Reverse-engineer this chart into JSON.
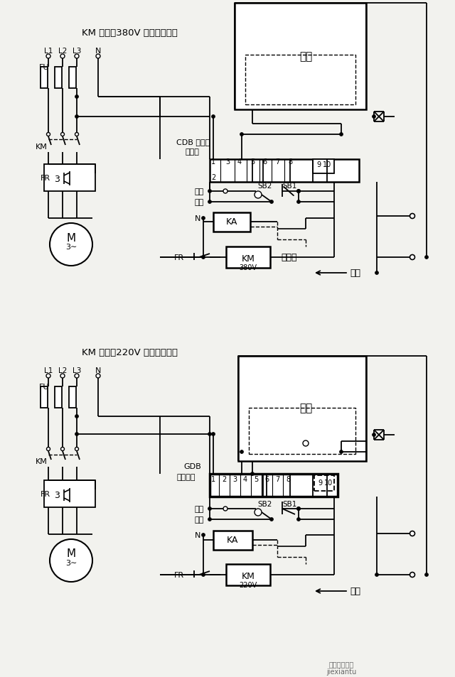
{
  "title1": "KM 线圈为380V 控制接线图：",
  "title2": "KM 线圈为220V 控制接线图：",
  "bg_color": "#f2f2ee",
  "watermark1": "头条电工技术",
  "watermark2": "jiexiantu"
}
